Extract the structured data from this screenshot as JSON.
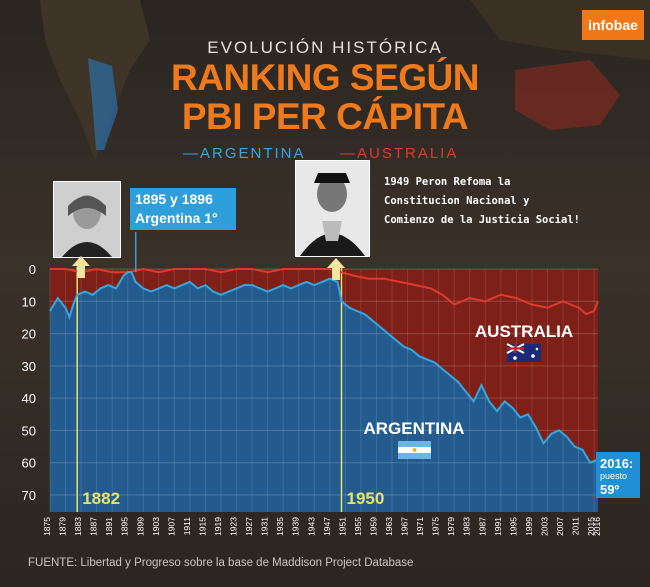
{
  "header": {
    "brand": "infobae",
    "subtitle": "EVOLUCIÓN HISTÓRICA",
    "title_line1": "RANKING SEGÚN",
    "title_line2": "PBI PER CÁPITA"
  },
  "annotations": {
    "a1895": {
      "line1": "1895 y 1896",
      "line2": "Argentina 1°"
    },
    "a1949": {
      "line1": "1949 Peron Refoma la",
      "line2": "Constitucion Nacional y",
      "line3": "Comienzo de la Justicia Social!"
    },
    "marker_1882": "1882",
    "marker_1950": "1950",
    "label_australia": "AUSTRALIA",
    "label_argentina": "ARGENTINA",
    "end_label": [
      "2016:",
      "puesto",
      "59º"
    ]
  },
  "footer": {
    "source": "FUENTE: Libertad y Progreso sobre la base de Maddison Project Database"
  },
  "colors": {
    "argentina": "#33a8e0",
    "australia": "#de3a2c",
    "area_fill": "#1f5f95",
    "accent": "#ef7a1c",
    "marker": "#e5e36a"
  },
  "chart_data": {
    "type": "line",
    "legend": [
      "—ARGENTINA",
      "—AUSTRALIA"
    ],
    "y_reversed": true,
    "ylim": [
      70,
      0
    ],
    "xlim": [
      1875,
      2016
    ],
    "y_ticks": [
      "0",
      "10",
      "20",
      "30",
      "40",
      "50",
      "60",
      "70"
    ],
    "x_ticks": [
      "1875",
      "1879",
      "1883",
      "1887",
      "1891",
      "1895",
      "1899",
      "1903",
      "1907",
      "1911",
      "1915",
      "1919",
      "1923",
      "1927",
      "1931",
      "1935",
      "1939",
      "1943",
      "1947",
      "1951",
      "1955",
      "1959",
      "1963",
      "1967",
      "1971",
      "1975",
      "1979",
      "1983",
      "1987",
      "1991",
      "1995",
      "1999",
      "2003",
      "2007",
      "2011",
      "2015",
      "2016"
    ],
    "series": [
      {
        "name": "ARGENTINA",
        "x": [
          1875,
          1877,
          1879,
          1880,
          1881,
          1882,
          1884,
          1886,
          1888,
          1890,
          1892,
          1894,
          1895,
          1896,
          1897,
          1899,
          1901,
          1903,
          1905,
          1907,
          1909,
          1911,
          1913,
          1915,
          1917,
          1919,
          1921,
          1923,
          1925,
          1927,
          1929,
          1931,
          1933,
          1935,
          1937,
          1939,
          1941,
          1943,
          1945,
          1947,
          1949,
          1950,
          1952,
          1954,
          1956,
          1958,
          1960,
          1962,
          1964,
          1966,
          1968,
          1970,
          1972,
          1974,
          1976,
          1978,
          1980,
          1982,
          1984,
          1986,
          1988,
          1990,
          1992,
          1994,
          1996,
          1998,
          2000,
          2002,
          2004,
          2006,
          2008,
          2010,
          2012,
          2014,
          2016
        ],
        "y": [
          13,
          9,
          12,
          15,
          11,
          8,
          7,
          8,
          6,
          5,
          6,
          2,
          1,
          1,
          4,
          6,
          7,
          6,
          5,
          6,
          5,
          4,
          6,
          5,
          7,
          8,
          7,
          6,
          5,
          5,
          6,
          7,
          6,
          5,
          6,
          5,
          4,
          5,
          4,
          3,
          4,
          10,
          12,
          13,
          14,
          16,
          18,
          20,
          22,
          24,
          25,
          27,
          28,
          29,
          31,
          33,
          35,
          38,
          41,
          36,
          41,
          44,
          41,
          43,
          46,
          45,
          49,
          54,
          51,
          50,
          52,
          55,
          56,
          60,
          59
        ]
      },
      {
        "name": "AUSTRALIA",
        "x": [
          1875,
          1879,
          1883,
          1887,
          1891,
          1895,
          1899,
          1903,
          1907,
          1911,
          1915,
          1919,
          1923,
          1927,
          1931,
          1935,
          1939,
          1943,
          1947,
          1950,
          1953,
          1957,
          1961,
          1965,
          1969,
          1973,
          1976,
          1979,
          1983,
          1987,
          1991,
          1995,
          1999,
          2003,
          2007,
          2011,
          2013,
          2015,
          2016
        ],
        "y": [
          0,
          0,
          1,
          0,
          1,
          1,
          0,
          1,
          0,
          0,
          0,
          1,
          0,
          0,
          1,
          0,
          0,
          0,
          0,
          1,
          2,
          3,
          3,
          4,
          5,
          6,
          8,
          11,
          9,
          10,
          8,
          9,
          11,
          12,
          10,
          12,
          14,
          13,
          10
        ]
      }
    ]
  }
}
